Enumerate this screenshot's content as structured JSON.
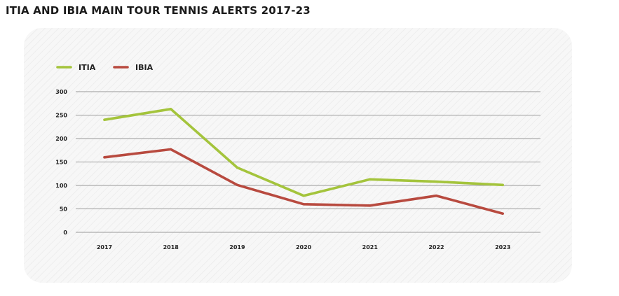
{
  "title": "ITIA AND IBIA MAIN TOUR TENNIS ALERTS 2017-23",
  "colors": {
    "ITIA": "#a4c43c",
    "IBIA": "#b84a3f",
    "grid": "#9a9a9a"
  },
  "chart_data": {
    "type": "line",
    "title": "ITIA AND IBIA MAIN TOUR TENNIS ALERTS 2017-23",
    "xlabel": "",
    "ylabel": "",
    "x": [
      "2017",
      "2018",
      "2019",
      "2020",
      "2021",
      "2022",
      "2023"
    ],
    "ylim": [
      0,
      300
    ],
    "yticks": [
      "0",
      "50",
      "100",
      "150",
      "200",
      "250",
      "300"
    ],
    "grid": true,
    "legend_position": "top-left",
    "series": [
      {
        "name": "ITIA",
        "values": [
          240,
          263,
          138,
          78,
          113,
          108,
          101
        ]
      },
      {
        "name": "IBIA",
        "values": [
          160,
          177,
          101,
          60,
          57,
          78,
          40
        ]
      }
    ]
  }
}
